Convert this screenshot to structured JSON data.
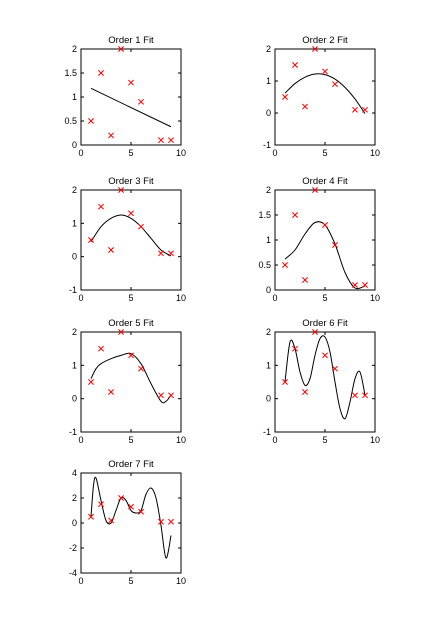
{
  "chart_data": [
    {
      "type": "line",
      "title": "Order 1 Fit",
      "xlim": [
        0,
        10
      ],
      "ylim": [
        0,
        2
      ],
      "xticks": [
        0,
        5,
        10
      ],
      "yticks": [
        0,
        0.5,
        1,
        1.5,
        2
      ],
      "xtick_labels": [
        "0",
        "5",
        "10"
      ],
      "ytick_labels": [
        "0",
        "0.5",
        "1",
        "1.5",
        "2"
      ],
      "points": {
        "x": [
          1,
          2,
          3,
          4,
          5,
          6,
          8,
          9
        ],
        "y": [
          0.5,
          1.5,
          0.2,
          2.0,
          1.3,
          0.9,
          0.1,
          0.1
        ]
      },
      "fit": {
        "x": [
          1,
          9
        ],
        "y": [
          1.18,
          0.38
        ]
      }
    },
    {
      "type": "line",
      "title": "Order 2 Fit",
      "xlim": [
        0,
        10
      ],
      "ylim": [
        -1,
        2
      ],
      "xticks": [
        0,
        5,
        10
      ],
      "yticks": [
        -1,
        0,
        1,
        2
      ],
      "xtick_labels": [
        "0",
        "5",
        "10"
      ],
      "ytick_labels": [
        "-1",
        "0",
        "1",
        "2"
      ],
      "points": {
        "x": [
          1,
          2,
          3,
          4,
          5,
          6,
          8,
          9
        ],
        "y": [
          0.5,
          1.5,
          0.2,
          2.0,
          1.3,
          0.9,
          0.1,
          0.1
        ]
      },
      "fit": {
        "x": [
          1,
          2,
          3,
          4,
          5,
          6,
          7,
          8,
          9
        ],
        "y": [
          0.62,
          0.92,
          1.12,
          1.22,
          1.2,
          1.06,
          0.8,
          0.44,
          -0.02
        ]
      }
    },
    {
      "type": "line",
      "title": "Order 3 Fit",
      "xlim": [
        0,
        10
      ],
      "ylim": [
        -1,
        2
      ],
      "xticks": [
        0,
        5,
        10
      ],
      "yticks": [
        -1,
        0,
        1,
        2
      ],
      "xtick_labels": [
        "0",
        "5",
        "10"
      ],
      "ytick_labels": [
        "-1",
        "0",
        "1",
        "2"
      ],
      "points": {
        "x": [
          1,
          2,
          3,
          4,
          5,
          6,
          8,
          9
        ],
        "y": [
          0.5,
          1.5,
          0.2,
          2.0,
          1.3,
          0.9,
          0.1,
          0.1
        ]
      },
      "fit": {
        "x": [
          1,
          2,
          3,
          4,
          5,
          6,
          7,
          8,
          9
        ],
        "y": [
          0.45,
          0.9,
          1.15,
          1.25,
          1.15,
          0.9,
          0.55,
          0.2,
          0.02
        ]
      }
    },
    {
      "type": "line",
      "title": "Order 4 Fit",
      "xlim": [
        0,
        10
      ],
      "ylim": [
        0,
        2
      ],
      "xticks": [
        0,
        5,
        10
      ],
      "yticks": [
        0,
        0.5,
        1,
        1.5,
        2
      ],
      "xtick_labels": [
        "0",
        "5",
        "10"
      ],
      "ytick_labels": [
        "0",
        "0.5",
        "1",
        "1.5",
        "2"
      ],
      "points": {
        "x": [
          1,
          2,
          3,
          4,
          5,
          6,
          8,
          9
        ],
        "y": [
          0.5,
          1.5,
          0.2,
          2.0,
          1.3,
          0.9,
          0.1,
          0.1
        ]
      },
      "fit": {
        "x": [
          1,
          2,
          3,
          4,
          5,
          6,
          7,
          8,
          9
        ],
        "y": [
          0.62,
          0.8,
          1.12,
          1.35,
          1.3,
          0.92,
          0.35,
          0.04,
          0.08
        ]
      }
    },
    {
      "type": "line",
      "title": "Order 5 Fit",
      "xlim": [
        0,
        10
      ],
      "ylim": [
        -1,
        2
      ],
      "xticks": [
        0,
        5,
        10
      ],
      "yticks": [
        -1,
        0,
        1,
        2
      ],
      "xtick_labels": [
        "0",
        "5",
        "10"
      ],
      "ytick_labels": [
        "-1",
        "0",
        "1",
        "2"
      ],
      "points": {
        "x": [
          1,
          2,
          3,
          4,
          5,
          6,
          8,
          9
        ],
        "y": [
          0.5,
          1.5,
          0.2,
          2.0,
          1.3,
          0.9,
          0.1,
          0.1
        ]
      },
      "fit": {
        "x": [
          1,
          1.5,
          2,
          3,
          4,
          5,
          6,
          7,
          8,
          8.5,
          9
        ],
        "y": [
          0.6,
          0.9,
          1.05,
          1.2,
          1.3,
          1.35,
          1.05,
          0.45,
          -0.08,
          -0.08,
          0.1
        ]
      }
    },
    {
      "type": "line",
      "title": "Order 6 Fit",
      "xlim": [
        0,
        10
      ],
      "ylim": [
        -1,
        2
      ],
      "xticks": [
        0,
        5,
        10
      ],
      "yticks": [
        -1,
        0,
        1,
        2
      ],
      "xtick_labels": [
        "0",
        "5",
        "10"
      ],
      "ytick_labels": [
        "-1",
        "0",
        "1",
        "2"
      ],
      "points": {
        "x": [
          1,
          2,
          3,
          4,
          5,
          6,
          8,
          9
        ],
        "y": [
          0.5,
          1.5,
          0.2,
          2.0,
          1.3,
          0.9,
          0.1,
          0.1
        ]
      },
      "fit": {
        "x": [
          1,
          1.5,
          2,
          2.5,
          3,
          3.5,
          4,
          4.5,
          5,
          5.5,
          6,
          6.5,
          7,
          7.5,
          8,
          8.5,
          9
        ],
        "y": [
          0.5,
          1.7,
          1.5,
          0.8,
          0.4,
          0.6,
          1.3,
          1.8,
          1.85,
          1.4,
          0.5,
          -0.3,
          -0.6,
          -0.1,
          0.6,
          0.8,
          0.1
        ]
      }
    },
    {
      "type": "line",
      "title": "Order 7 Fit",
      "xlim": [
        0,
        10
      ],
      "ylim": [
        -4,
        4
      ],
      "xticks": [
        0,
        5,
        10
      ],
      "yticks": [
        -4,
        -2,
        0,
        2,
        4
      ],
      "xtick_labels": [
        "0",
        "5",
        "10"
      ],
      "ytick_labels": [
        "-4",
        "-2",
        "0",
        "2",
        "4"
      ],
      "points": {
        "x": [
          1,
          2,
          3,
          4,
          5,
          6,
          8,
          9
        ],
        "y": [
          0.5,
          1.5,
          0.2,
          2.0,
          1.3,
          0.9,
          0.1,
          0.1
        ]
      },
      "fit": {
        "x": [
          1,
          1.25,
          1.5,
          2,
          2.5,
          3,
          3.5,
          4,
          4.5,
          5,
          5.5,
          6,
          6.5,
          7,
          7.5,
          8,
          8.5,
          9
        ],
        "y": [
          0.5,
          3.0,
          3.6,
          1.8,
          0.2,
          0.0,
          1.0,
          2.0,
          1.8,
          1.0,
          0.8,
          1.0,
          2.3,
          2.8,
          2.0,
          -0.2,
          -2.8,
          -1.0
        ]
      }
    }
  ],
  "colors": {
    "points": "#ff0000",
    "fit": "#000000",
    "axes": "#000000"
  }
}
